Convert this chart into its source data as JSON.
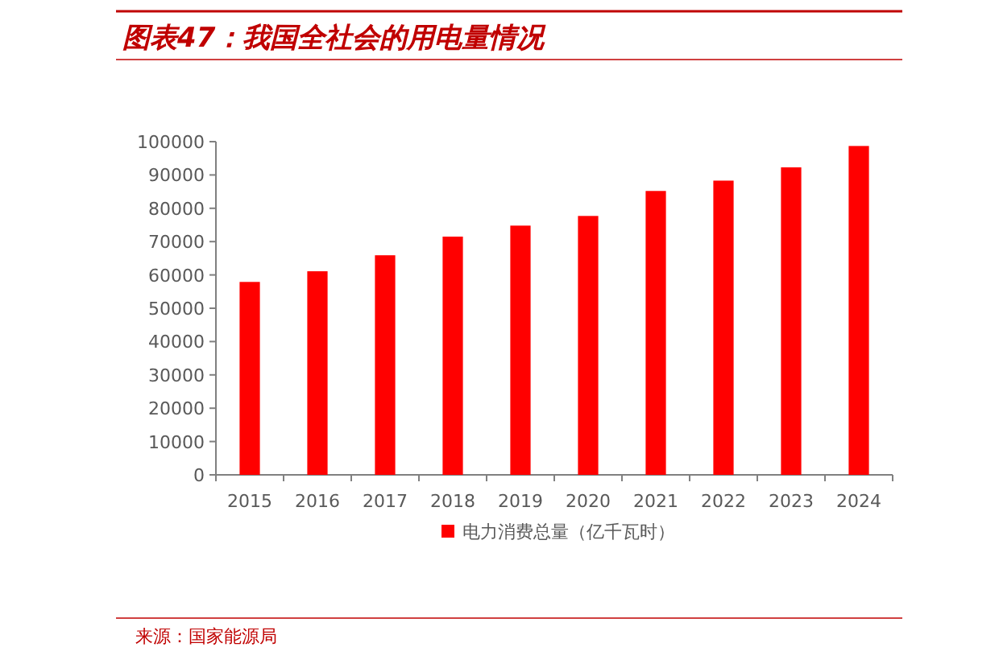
{
  "chart_data": {
    "type": "bar",
    "title": "图表47：我国全社会的用电量情况",
    "categories": [
      "2015",
      "2016",
      "2017",
      "2018",
      "2019",
      "2020",
      "2021",
      "2022",
      "2023",
      "2024"
    ],
    "series": [
      {
        "name": "电力消费总量（亿千瓦时）",
        "color": "#ff0000",
        "values": [
          57900,
          61100,
          65900,
          71500,
          74800,
          77700,
          85200,
          88300,
          92300,
          98700
        ]
      }
    ],
    "ylim": [
      0,
      100000
    ],
    "yticks": [
      0,
      10000,
      20000,
      30000,
      40000,
      50000,
      60000,
      70000,
      80000,
      90000,
      100000
    ],
    "legend": "bottom",
    "annotations": [
      "来源：国家能源局"
    ]
  }
}
